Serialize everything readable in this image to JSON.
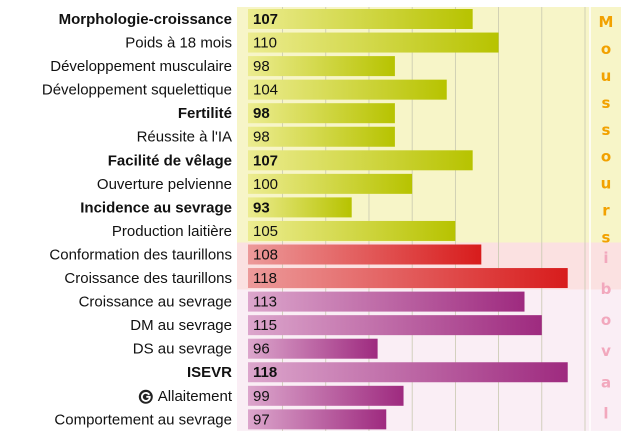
{
  "chart_data": {
    "type": "bar",
    "orientation": "horizontal",
    "xlim": [
      81,
      120
    ],
    "xticks": [
      85,
      90,
      95,
      100,
      105,
      110,
      115,
      120
    ],
    "grid": true,
    "series": [
      {
        "name": "Moussours",
        "color": "#b7c300",
        "color_light": "#ecec90",
        "background": "#f7f5c8",
        "letter_color": "#f2a100",
        "categories": [
          "Morphologie-croissance",
          "Poids à 18 mois",
          "Développement musculaire",
          "Développement squelettique",
          "Fertilité",
          "Réussite à l'IA",
          "Facilité de vêlage",
          "Ouverture pelvienne",
          "Incidence au sevrage",
          "Production laitière"
        ],
        "values": [
          107,
          110,
          98,
          104,
          98,
          98,
          107,
          100,
          93,
          105
        ],
        "bold": [
          true,
          false,
          false,
          false,
          true,
          false,
          true,
          false,
          true,
          false
        ]
      },
      {
        "name": "iboval",
        "color": "#d81c1c",
        "color_light": "#ec9a9a",
        "background": "#fbe1e1",
        "letter_color": "#f2a8bd",
        "categories": [
          "Conformation des taurillons",
          "Croissance des taurillons"
        ],
        "values": [
          108,
          118
        ],
        "bold": [
          false,
          false
        ]
      },
      {
        "name": "iboval",
        "color": "#9e2a7f",
        "color_light": "#dca6cc",
        "background": "#faeef5",
        "letter_color": "#efa3c4",
        "categories": [
          "Croissance au sevrage",
          "DM au sevrage",
          "DS au sevrage",
          "ISEVR",
          "Allaitement",
          "Comportement au sevrage"
        ],
        "values": [
          113,
          115,
          96,
          118,
          99,
          97
        ],
        "bold": [
          false,
          false,
          false,
          true,
          false,
          false
        ]
      }
    ]
  }
}
